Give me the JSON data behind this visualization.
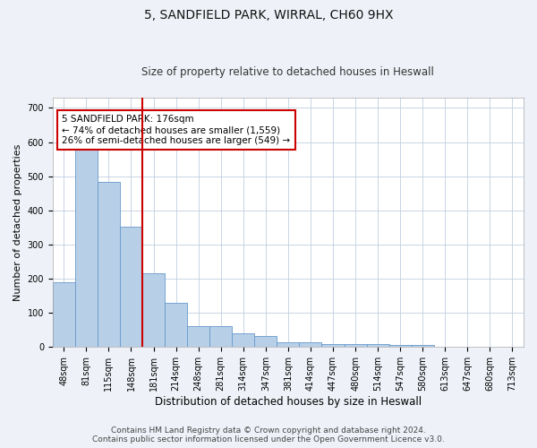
{
  "title_line1": "5, SANDFIELD PARK, WIRRAL, CH60 9HX",
  "title_line2": "Size of property relative to detached houses in Heswall",
  "xlabel": "Distribution of detached houses by size in Heswall",
  "ylabel": "Number of detached properties",
  "categories": [
    "48sqm",
    "81sqm",
    "115sqm",
    "148sqm",
    "181sqm",
    "214sqm",
    "248sqm",
    "281sqm",
    "314sqm",
    "347sqm",
    "381sqm",
    "414sqm",
    "447sqm",
    "480sqm",
    "514sqm",
    "547sqm",
    "580sqm",
    "613sqm",
    "647sqm",
    "680sqm",
    "713sqm"
  ],
  "values": [
    190,
    580,
    483,
    352,
    215,
    130,
    62,
    62,
    40,
    33,
    15,
    15,
    8,
    10,
    10,
    6,
    5,
    0,
    0,
    0,
    0
  ],
  "bar_color": "#b8cfe8",
  "bar_edge_color": "#6699cc",
  "vline_color": "#cc0000",
  "vline_x_idx": 3.5,
  "annotation_text": "5 SANDFIELD PARK: 176sqm\n← 74% of detached houses are smaller (1,559)\n26% of semi-detached houses are larger (549) →",
  "annotation_box_color": "#ffffff",
  "annotation_box_edge_color": "#cc0000",
  "ylim": [
    0,
    730
  ],
  "yticks": [
    0,
    100,
    200,
    300,
    400,
    500,
    600,
    700
  ],
  "footer_line1": "Contains HM Land Registry data © Crown copyright and database right 2024.",
  "footer_line2": "Contains public sector information licensed under the Open Government Licence v3.0.",
  "background_color": "#eef2f8",
  "plot_background_color": "#ffffff",
  "grid_color": "#c0cedf",
  "title_fontsize": 10,
  "subtitle_fontsize": 8.5,
  "ylabel_fontsize": 8,
  "xlabel_fontsize": 8.5,
  "tick_fontsize": 7,
  "annotation_fontsize": 7.5,
  "footer_fontsize": 6.5
}
